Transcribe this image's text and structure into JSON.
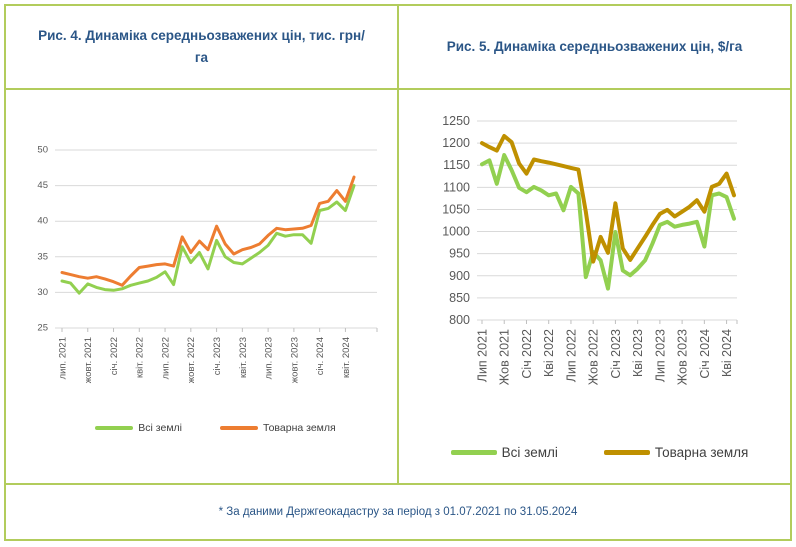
{
  "colors": {
    "border": "#b2cc5c",
    "title_text": "#2b5687",
    "axis_text": "#595959",
    "gridline": "#d9d9d9",
    "tick_mark": "#bfbfbf",
    "series_green": "#92d050",
    "series_orange": "#ed7d31",
    "series_dark_yellow": "#bf9000"
  },
  "chart_data": [
    {
      "type": "line",
      "title": "Рис. 4. Динаміка середньозважених цін, тис. грн/га",
      "unit": "тис. грн/га",
      "x_period": "monthly, Jul 2021 – May 2024 (35 points)",
      "x_tick_labels": [
        "лип. 2021",
        "жовт. 2021",
        "січ. 2022",
        "квіт. 2022",
        "лип. 2022",
        "жовт. 2022",
        "січ. 2023",
        "квіт. 2023",
        "лип. 2023",
        "жовт. 2023",
        "січ. 2024",
        "квіт. 2024"
      ],
      "tick_every": 3,
      "ylim": [
        25,
        50
      ],
      "yticks": [
        25,
        30,
        35,
        40,
        45,
        50
      ],
      "grid": true,
      "legend_position": "bottom",
      "series": [
        {
          "name": "Всі землі",
          "color": "#92d050",
          "values": [
            31.6,
            31.3,
            29.9,
            31.2,
            30.7,
            30.4,
            30.3,
            30.5,
            31.0,
            31.3,
            31.6,
            32.1,
            32.9,
            31.1,
            36.4,
            34.2,
            35.6,
            33.3,
            37.3,
            35.0,
            34.2,
            34.0,
            34.8,
            35.6,
            36.6,
            38.3,
            37.9,
            38.1,
            38.1,
            36.9,
            41.5,
            41.8,
            42.7,
            41.5,
            45.0
          ]
        },
        {
          "name": "Товарна земля",
          "color": "#ed7d31",
          "values": [
            32.8,
            32.5,
            32.2,
            32.0,
            32.2,
            31.9,
            31.5,
            31.0,
            32.3,
            33.5,
            33.7,
            33.9,
            34.0,
            33.7,
            37.8,
            35.6,
            37.2,
            36.0,
            39.3,
            36.8,
            35.4,
            36.0,
            36.3,
            36.8,
            38.0,
            39.0,
            38.8,
            38.9,
            39.0,
            39.4,
            42.5,
            42.8,
            44.3,
            42.8,
            46.2
          ]
        }
      ]
    },
    {
      "type": "line",
      "title": "Рис. 5. Динаміка середньозважених цін, $/га",
      "unit": "$/га",
      "x_period": "monthly, Jul 2021 – May 2024 (35 points)",
      "x_tick_labels": [
        "Лип 2021",
        "Жов 2021",
        "Січ 2022",
        "Кві 2022",
        "Лип 2022",
        "Жов 2022",
        "Січ 2023",
        "Кві 2023",
        "Лип 2023",
        "Жов 2023",
        "Січ 2024",
        "Кві 2024"
      ],
      "tick_every": 3,
      "ylim": [
        800,
        1250
      ],
      "yticks": [
        800,
        850,
        900,
        950,
        1000,
        1050,
        1100,
        1150,
        1200,
        1250
      ],
      "grid": true,
      "legend_position": "bottom",
      "series": [
        {
          "name": "Всі землі",
          "color": "#92d050",
          "values": [
            1152,
            1161,
            1108,
            1173,
            1139,
            1099,
            1089,
            1101,
            1093,
            1082,
            1086,
            1048,
            1101,
            1086,
            897,
            954,
            935,
            871,
            999,
            912,
            901,
            916,
            935,
            973,
            1015,
            1022,
            1011,
            1015,
            1018,
            1022,
            966,
            1082,
            1086,
            1078,
            1029
          ]
        },
        {
          "name": "Товарна земля",
          "color": "#bf9000",
          "values": [
            1200,
            1191,
            1183,
            1216,
            1202,
            1154,
            1131,
            1163,
            1159,
            1156,
            1152,
            1148,
            1144,
            1140,
            1045,
            932,
            988,
            952,
            1064,
            962,
            936,
            962,
            988,
            1015,
            1040,
            1049,
            1034,
            1045,
            1056,
            1071,
            1045,
            1101,
            1108,
            1131,
            1082
          ]
        }
      ]
    }
  ],
  "footnote": {
    "text": "* За даними Держгеокадастру за період з 01.07.2021 по 31.05.2024"
  }
}
